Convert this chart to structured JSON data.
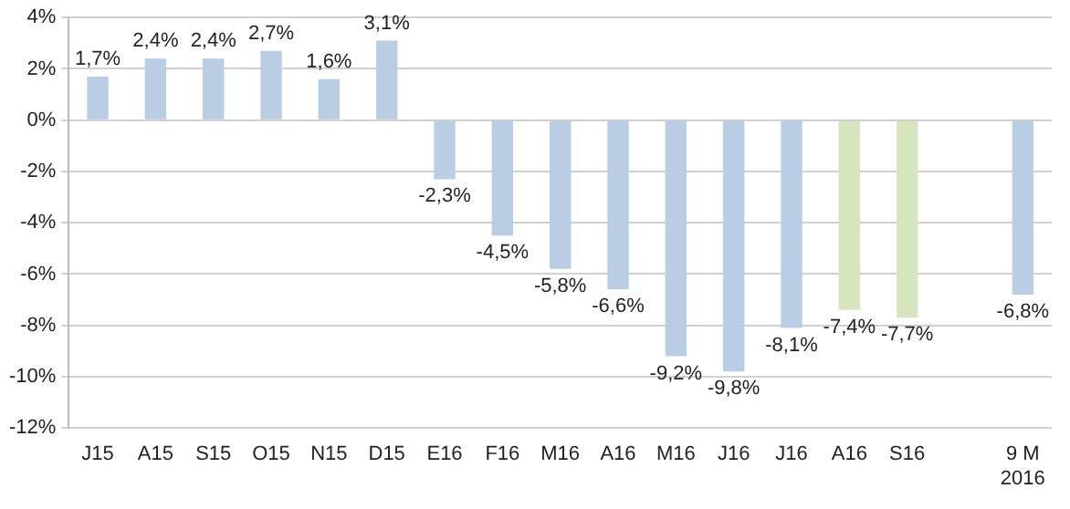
{
  "chart_data": {
    "type": "bar",
    "categories": [
      "J15",
      "A15",
      "S15",
      "O15",
      "N15",
      "D15",
      "E16",
      "F16",
      "M16",
      "A16",
      "M16",
      "J16",
      "J16",
      "A16",
      "S16",
      null,
      "9 M 2016"
    ],
    "values": [
      1.7,
      2.4,
      2.4,
      2.7,
      1.6,
      3.1,
      -2.3,
      -4.5,
      -5.8,
      -6.6,
      -9.2,
      -9.8,
      -8.1,
      -7.4,
      -7.7,
      null,
      -6.8
    ],
    "colors": [
      "#b9cde5",
      "#b9cde5",
      "#b9cde5",
      "#b9cde5",
      "#b9cde5",
      "#b9cde5",
      "#b9cde5",
      "#b9cde5",
      "#b9cde5",
      "#b9cde5",
      "#b9cde5",
      "#b9cde5",
      "#b9cde5",
      "#d7e4bd",
      "#d7e4bd",
      null,
      "#b9cde5"
    ],
    "value_labels": [
      "1,7%",
      "2,4%",
      "2,4%",
      "2,7%",
      "1,6%",
      "3,1%",
      "-2,3%",
      "-4,5%",
      "-5,8%",
      "-6,6%",
      "-9,2%",
      "-9,8%",
      "-8,1%",
      "-7,4%",
      "-7,7%",
      null,
      "-6,8%"
    ],
    "ylim": [
      -12,
      4
    ],
    "yticks": [
      {
        "value": -12,
        "label": "-12%"
      },
      {
        "value": -10,
        "label": "-10%"
      },
      {
        "value": -8,
        "label": "-8%"
      },
      {
        "value": -6,
        "label": "-6%"
      },
      {
        "value": -4,
        "label": "-4%"
      },
      {
        "value": -2,
        "label": "-2%"
      },
      {
        "value": 0,
        "label": "0%"
      },
      {
        "value": 2,
        "label": "2%"
      },
      {
        "value": 4,
        "label": "4%"
      }
    ],
    "grid": "y",
    "legend": false
  }
}
